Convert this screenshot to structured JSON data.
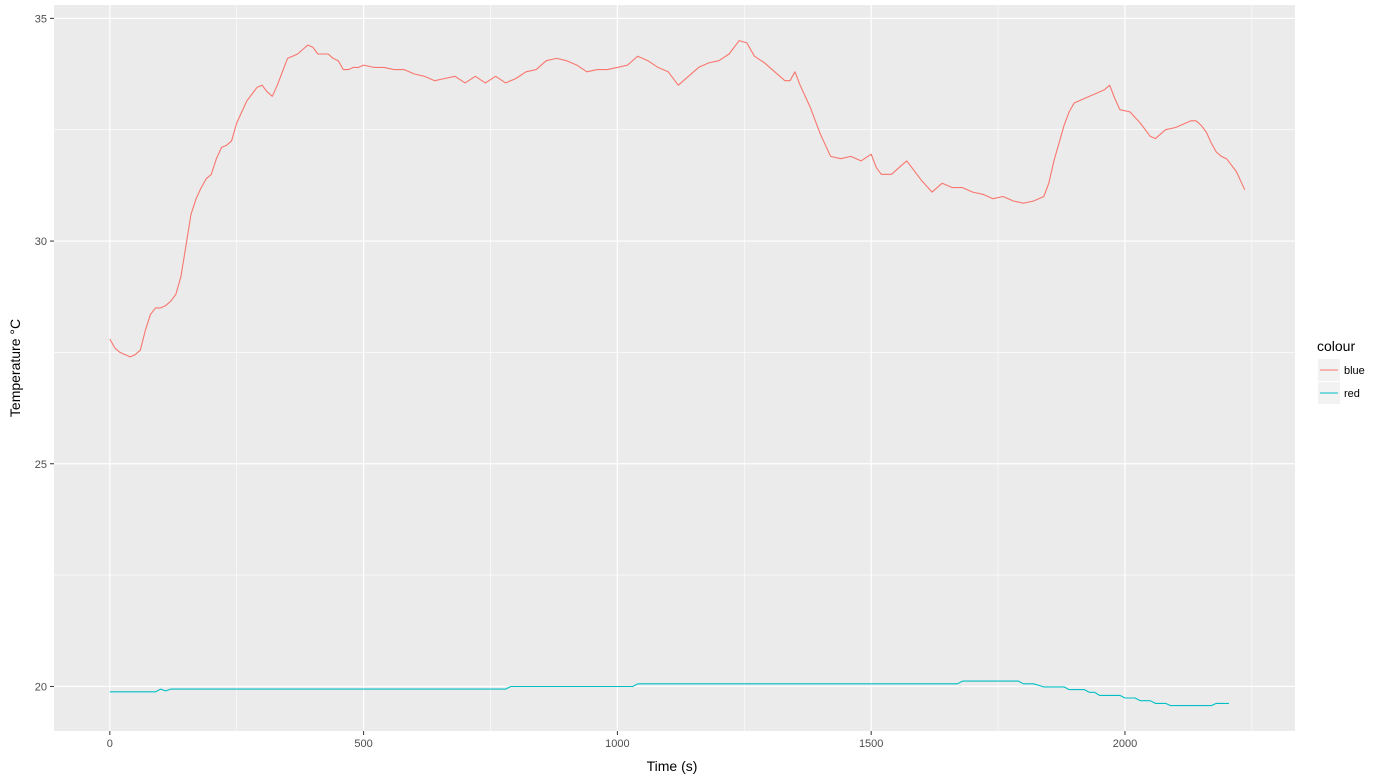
{
  "chart_data": {
    "type": "line",
    "xlabel": "Time (s)",
    "ylabel": "Temperature °C",
    "xlim": [
      -110,
      2335
    ],
    "ylim": [
      19.0,
      35.3
    ],
    "x_ticks": [
      0,
      500,
      1000,
      1500,
      2000
    ],
    "y_ticks": [
      20,
      25,
      30,
      35
    ],
    "grid": true,
    "legend": {
      "title": "colour",
      "placement": "right"
    },
    "series": [
      {
        "name": "blue",
        "color": "#F8766D",
        "points": [
          [
            0,
            27.8
          ],
          [
            10,
            27.6
          ],
          [
            20,
            27.5
          ],
          [
            30,
            27.45
          ],
          [
            40,
            27.4
          ],
          [
            50,
            27.45
          ],
          [
            60,
            27.55
          ],
          [
            70,
            28.0
          ],
          [
            80,
            28.35
          ],
          [
            90,
            28.5
          ],
          [
            100,
            28.5
          ],
          [
            110,
            28.55
          ],
          [
            120,
            28.65
          ],
          [
            130,
            28.8
          ],
          [
            140,
            29.2
          ],
          [
            150,
            29.9
          ],
          [
            160,
            30.6
          ],
          [
            170,
            30.95
          ],
          [
            180,
            31.2
          ],
          [
            190,
            31.4
          ],
          [
            200,
            31.5
          ],
          [
            210,
            31.85
          ],
          [
            220,
            32.1
          ],
          [
            230,
            32.15
          ],
          [
            240,
            32.25
          ],
          [
            250,
            32.65
          ],
          [
            260,
            32.9
          ],
          [
            270,
            33.15
          ],
          [
            280,
            33.3
          ],
          [
            290,
            33.45
          ],
          [
            300,
            33.5
          ],
          [
            310,
            33.35
          ],
          [
            320,
            33.25
          ],
          [
            330,
            33.5
          ],
          [
            340,
            33.8
          ],
          [
            350,
            34.1
          ],
          [
            360,
            34.15
          ],
          [
            370,
            34.2
          ],
          [
            380,
            34.3
          ],
          [
            390,
            34.4
          ],
          [
            400,
            34.35
          ],
          [
            410,
            34.2
          ],
          [
            420,
            34.2
          ],
          [
            430,
            34.2
          ],
          [
            440,
            34.1
          ],
          [
            450,
            34.05
          ],
          [
            460,
            33.85
          ],
          [
            470,
            33.85
          ],
          [
            480,
            33.9
          ],
          [
            490,
            33.9
          ],
          [
            500,
            33.95
          ],
          [
            520,
            33.9
          ],
          [
            540,
            33.9
          ],
          [
            560,
            33.85
          ],
          [
            580,
            33.85
          ],
          [
            600,
            33.75
          ],
          [
            620,
            33.7
          ],
          [
            640,
            33.6
          ],
          [
            660,
            33.65
          ],
          [
            680,
            33.7
          ],
          [
            700,
            33.55
          ],
          [
            720,
            33.7
          ],
          [
            740,
            33.55
          ],
          [
            760,
            33.7
          ],
          [
            780,
            33.55
          ],
          [
            800,
            33.65
          ],
          [
            820,
            33.8
          ],
          [
            840,
            33.85
          ],
          [
            860,
            34.05
          ],
          [
            880,
            34.1
          ],
          [
            900,
            34.05
          ],
          [
            920,
            33.95
          ],
          [
            940,
            33.8
          ],
          [
            960,
            33.85
          ],
          [
            980,
            33.85
          ],
          [
            1000,
            33.9
          ],
          [
            1020,
            33.95
          ],
          [
            1040,
            34.15
          ],
          [
            1060,
            34.05
          ],
          [
            1080,
            33.9
          ],
          [
            1100,
            33.8
          ],
          [
            1120,
            33.5
          ],
          [
            1140,
            33.7
          ],
          [
            1160,
            33.9
          ],
          [
            1180,
            34.0
          ],
          [
            1200,
            34.05
          ],
          [
            1220,
            34.2
          ],
          [
            1240,
            34.5
          ],
          [
            1255,
            34.45
          ],
          [
            1270,
            34.15
          ],
          [
            1290,
            34.0
          ],
          [
            1310,
            33.8
          ],
          [
            1330,
            33.6
          ],
          [
            1340,
            33.6
          ],
          [
            1350,
            33.8
          ],
          [
            1360,
            33.5
          ],
          [
            1370,
            33.25
          ],
          [
            1380,
            33.0
          ],
          [
            1390,
            32.7
          ],
          [
            1400,
            32.4
          ],
          [
            1410,
            32.15
          ],
          [
            1420,
            31.9
          ],
          [
            1440,
            31.85
          ],
          [
            1460,
            31.9
          ],
          [
            1480,
            31.8
          ],
          [
            1500,
            31.95
          ],
          [
            1510,
            31.65
          ],
          [
            1520,
            31.5
          ],
          [
            1540,
            31.5
          ],
          [
            1560,
            31.7
          ],
          [
            1570,
            31.8
          ],
          [
            1580,
            31.65
          ],
          [
            1600,
            31.35
          ],
          [
            1620,
            31.1
          ],
          [
            1640,
            31.3
          ],
          [
            1660,
            31.2
          ],
          [
            1680,
            31.2
          ],
          [
            1700,
            31.1
          ],
          [
            1720,
            31.05
          ],
          [
            1740,
            30.95
          ],
          [
            1760,
            31.0
          ],
          [
            1780,
            30.9
          ],
          [
            1800,
            30.85
          ],
          [
            1820,
            30.9
          ],
          [
            1840,
            31.0
          ],
          [
            1850,
            31.3
          ],
          [
            1860,
            31.8
          ],
          [
            1870,
            32.2
          ],
          [
            1880,
            32.6
          ],
          [
            1890,
            32.9
          ],
          [
            1900,
            33.1
          ],
          [
            1920,
            33.2
          ],
          [
            1940,
            33.3
          ],
          [
            1960,
            33.4
          ],
          [
            1970,
            33.5
          ],
          [
            1980,
            33.2
          ],
          [
            1990,
            32.95
          ],
          [
            2010,
            32.9
          ],
          [
            2030,
            32.65
          ],
          [
            2050,
            32.35
          ],
          [
            2060,
            32.3
          ],
          [
            2080,
            32.5
          ],
          [
            2100,
            32.55
          ],
          [
            2120,
            32.65
          ],
          [
            2130,
            32.7
          ],
          [
            2140,
            32.7
          ],
          [
            2150,
            32.6
          ],
          [
            2160,
            32.45
          ],
          [
            2170,
            32.2
          ],
          [
            2180,
            32.0
          ],
          [
            2190,
            31.9
          ],
          [
            2200,
            31.85
          ],
          [
            2210,
            31.7
          ],
          [
            2220,
            31.55
          ],
          [
            2230,
            31.3
          ],
          [
            2236,
            31.15
          ]
        ]
      },
      {
        "name": "red",
        "color": "#00BFC4",
        "points": [
          [
            0,
            19.88
          ],
          [
            90,
            19.88
          ],
          [
            100,
            19.94
          ],
          [
            110,
            19.9
          ],
          [
            120,
            19.94
          ],
          [
            780,
            19.94
          ],
          [
            790,
            20.0
          ],
          [
            1030,
            20.0
          ],
          [
            1040,
            20.06
          ],
          [
            1670,
            20.06
          ],
          [
            1680,
            20.12
          ],
          [
            1790,
            20.12
          ],
          [
            1800,
            20.06
          ],
          [
            1820,
            20.06
          ],
          [
            1840,
            19.99
          ],
          [
            1880,
            19.99
          ],
          [
            1890,
            19.93
          ],
          [
            1920,
            19.93
          ],
          [
            1930,
            19.87
          ],
          [
            1940,
            19.87
          ],
          [
            1950,
            19.8
          ],
          [
            1990,
            19.8
          ],
          [
            2000,
            19.74
          ],
          [
            2020,
            19.74
          ],
          [
            2030,
            19.68
          ],
          [
            2050,
            19.68
          ],
          [
            2060,
            19.62
          ],
          [
            2080,
            19.62
          ],
          [
            2090,
            19.57
          ],
          [
            2170,
            19.57
          ],
          [
            2180,
            19.62
          ],
          [
            2205,
            19.62
          ]
        ]
      }
    ]
  }
}
